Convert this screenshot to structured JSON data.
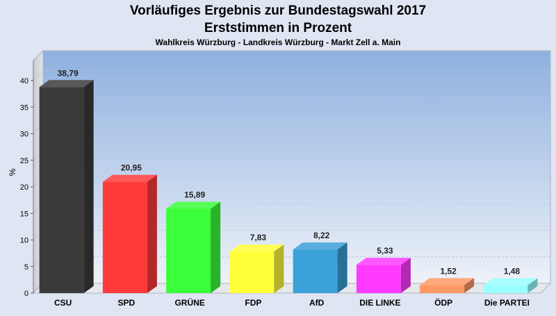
{
  "chart_data": {
    "type": "bar",
    "title": "Vorläufiges Ergebnis zur Bundestagswahl 2017",
    "subtitle": "Erststimmen in Prozent",
    "caption": "Wahlkreis Würzburg - Landkreis Würzburg - Markt Zell a. Main",
    "ylabel": "%",
    "ylim": [
      0,
      45
    ],
    "yticks": [
      0,
      5,
      10,
      15,
      20,
      25,
      30,
      35,
      40
    ],
    "grid": true,
    "categories": [
      "CSU",
      "SPD",
      "GRÜNE",
      "FDP",
      "AfD",
      "DIE LINKE",
      "ÖDP",
      "Die PARTEI"
    ],
    "values": [
      38.79,
      20.95,
      15.89,
      7.83,
      8.22,
      5.33,
      1.52,
      1.48
    ],
    "value_labels": [
      "38,79",
      "20,95",
      "15,89",
      "7,83",
      "8,22",
      "5,33",
      "1,52",
      "1,48"
    ],
    "colors": [
      "#3a3a3a",
      "#ff3a3a",
      "#3aff3a",
      "#ffff3a",
      "#3aa0d8",
      "#ff3aff",
      "#ff9966",
      "#99ffff"
    ]
  }
}
